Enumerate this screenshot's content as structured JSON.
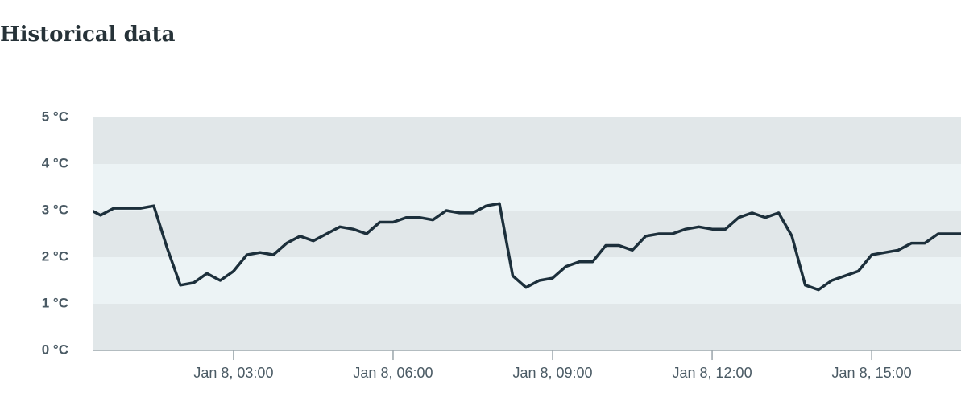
{
  "header": {
    "title": "Historical data"
  },
  "chart_data": {
    "type": "line",
    "x": [
      0.25,
      0.5,
      0.75,
      1,
      1.25,
      1.5,
      1.75,
      2,
      2.25,
      2.5,
      2.75,
      3,
      3.25,
      3.5,
      3.75,
      4,
      4.25,
      4.5,
      4.75,
      5,
      5.25,
      5.5,
      5.75,
      6,
      6.25,
      6.5,
      6.75,
      7,
      7.25,
      7.5,
      7.75,
      8,
      8.25,
      8.5,
      8.75,
      9,
      9.25,
      9.5,
      9.75,
      10,
      10.25,
      10.5,
      10.75,
      11,
      11.25,
      11.5,
      11.75,
      12,
      12.25,
      12.5,
      12.75,
      13,
      13.25,
      13.5,
      13.75,
      14,
      14.25,
      14.5,
      14.75,
      15,
      15.25,
      15.5,
      15.75,
      16,
      16.25,
      16.5,
      16.75
    ],
    "series": [
      {
        "color": "#1c2f3b",
        "values": [
          3.05,
          2.9,
          3.05,
          3.05,
          3.05,
          3.1,
          2.2,
          1.4,
          1.45,
          1.65,
          1.5,
          1.7,
          2.05,
          2.1,
          2.05,
          2.3,
          2.45,
          2.35,
          2.5,
          2.65,
          2.6,
          2.5,
          2.75,
          2.75,
          2.85,
          2.85,
          2.8,
          3.0,
          2.95,
          2.95,
          3.1,
          3.15,
          1.6,
          1.35,
          1.5,
          1.55,
          1.8,
          1.9,
          1.9,
          2.25,
          2.25,
          2.15,
          2.45,
          2.5,
          2.5,
          2.6,
          2.65,
          2.6,
          2.6,
          2.85,
          2.95,
          2.85,
          2.95,
          2.45,
          1.4,
          1.3,
          1.5,
          1.6,
          1.7,
          2.05,
          2.1,
          2.15,
          2.3,
          2.3,
          2.5,
          2.5,
          2.5
        ]
      }
    ],
    "xlim": [
      0.35,
      16.68
    ],
    "xticks": [
      {
        "value": 3,
        "label": "Jan 8, 03:00"
      },
      {
        "value": 6,
        "label": "Jan 8, 06:00"
      },
      {
        "value": 9,
        "label": "Jan 8, 09:00"
      },
      {
        "value": 12,
        "label": "Jan 8, 12:00"
      },
      {
        "value": 15,
        "label": "Jan 8, 15:00"
      }
    ],
    "ylim": [
      0,
      5
    ],
    "yticks": [
      {
        "value": 0,
        "label": "0 °C"
      },
      {
        "value": 1,
        "label": "1 °C"
      },
      {
        "value": 2,
        "label": "2 °C"
      },
      {
        "value": 3,
        "label": "3 °C"
      },
      {
        "value": 4,
        "label": "4 °C"
      },
      {
        "value": 5,
        "label": "5 °C"
      }
    ],
    "grid": true
  }
}
